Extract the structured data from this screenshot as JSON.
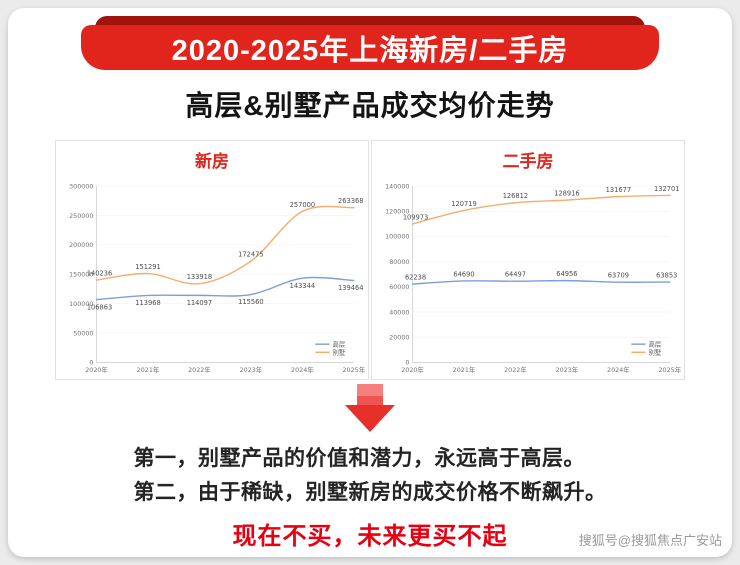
{
  "banner": {
    "title": "2020-2025年上海新房/二手房"
  },
  "page_title": "高层&别墅产品成交均价走势",
  "colors": {
    "banner_red": "#e2251c",
    "banner_dark_red": "#a0140e",
    "highlight_red": "#e60012",
    "highrise_blue": "#7f9fd4",
    "villa_orange": "#f2ae6e"
  },
  "chart_data": [
    {
      "type": "line",
      "title": "新房",
      "categories": [
        "2020年",
        "2021年",
        "2022年",
        "2023年",
        "2024年",
        "2025年"
      ],
      "series": [
        {
          "name": "高层",
          "color": "#7f9fd4",
          "label_position": "below",
          "values": [
            106863,
            113968,
            114097,
            115560,
            143344,
            139464
          ]
        },
        {
          "name": "别墅",
          "color": "#f2ae6e",
          "label_position": "above",
          "values": [
            140236,
            151291,
            133918,
            172475,
            257000,
            263368
          ]
        }
      ],
      "xlabel": "",
      "ylabel": "",
      "ylim": [
        0,
        300000
      ],
      "ytick_step": 50000,
      "grid": true,
      "legend_position": "bottom-right"
    },
    {
      "type": "line",
      "title": "二手房",
      "categories": [
        "2020年",
        "2021年",
        "2022年",
        "2023年",
        "2024年",
        "2025年"
      ],
      "series": [
        {
          "name": "高层",
          "color": "#7f9fd4",
          "label_position": "above",
          "values": [
            62238,
            64690,
            64497,
            64956,
            63709,
            63853
          ]
        },
        {
          "name": "别墅",
          "color": "#f2ae6e",
          "label_position": "above",
          "values": [
            109973,
            120719,
            126812,
            128916,
            131677,
            132701
          ]
        }
      ],
      "xlabel": "",
      "ylabel": "",
      "ylim": [
        0,
        140000
      ],
      "ytick_step": 20000,
      "grid": true,
      "legend_position": "bottom-right"
    }
  ],
  "conclusions": [
    "第一，别墅产品的价值和潜力，永远高于高层。",
    "第二，由于稀缺，别墅新房的成交价格不断飙升。"
  ],
  "highlight": "现在不买，未来更买不起",
  "watermark": "搜狐号@搜狐焦点广安站"
}
